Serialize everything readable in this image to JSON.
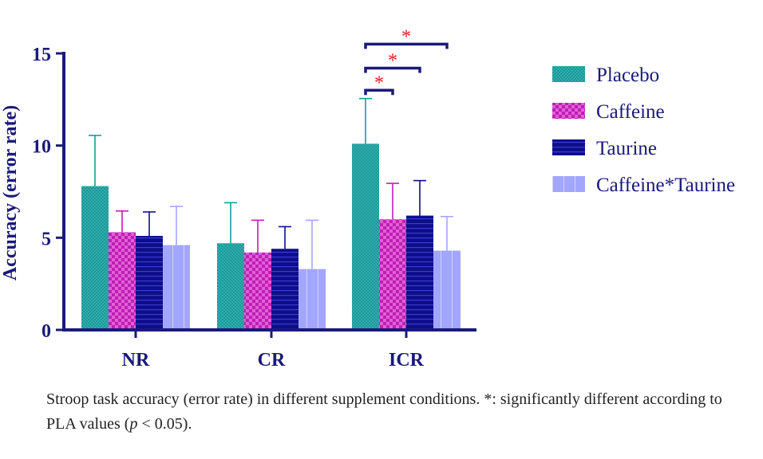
{
  "chart_data": {
    "type": "bar",
    "title": "",
    "xlabel": "",
    "ylabel": "Accuracy (error rate)",
    "ylim": [
      0,
      15
    ],
    "yticks": [
      "0",
      "5",
      "10",
      "15"
    ],
    "categories": [
      "NR",
      "CR",
      "ICR"
    ],
    "series": [
      {
        "name": "Placebo",
        "values": [
          7.8,
          4.7,
          10.1
        ],
        "errors": [
          2.75,
          2.2,
          2.45
        ],
        "color": "#1a9a9a",
        "pattern": "dots"
      },
      {
        "name": "Caffeine",
        "values": [
          5.3,
          4.2,
          6.0
        ],
        "errors": [
          1.15,
          1.75,
          1.95
        ],
        "color": "#c01eb4",
        "pattern": "checker"
      },
      {
        "name": "Taurine",
        "values": [
          5.1,
          4.4,
          6.2
        ],
        "errors": [
          1.3,
          1.2,
          1.9
        ],
        "color": "#0e0e8a",
        "pattern": "hlines"
      },
      {
        "name": "Caffeine*Taurine",
        "values": [
          4.6,
          3.3,
          4.3
        ],
        "errors": [
          2.1,
          2.65,
          1.85
        ],
        "color": "#a3a6ff",
        "pattern": "vlines"
      }
    ],
    "significance": [
      {
        "category": "ICR",
        "from_series": "Placebo",
        "to_series": "Caffeine",
        "y": 13.0,
        "label": "*"
      },
      {
        "category": "ICR",
        "from_series": "Placebo",
        "to_series": "Taurine",
        "y": 14.2,
        "label": "*"
      },
      {
        "category": "ICR",
        "from_series": "Placebo",
        "to_series": "Caffeine*Taurine",
        "y": 15.5,
        "label": "*"
      }
    ],
    "legend_position": "right",
    "grid": false
  },
  "caption": {
    "text1": "Stroop task accuracy (error rate) in different supplement conditions. *: significantly different according to PLA values (",
    "p": "p",
    "text2": " < 0.05)."
  }
}
